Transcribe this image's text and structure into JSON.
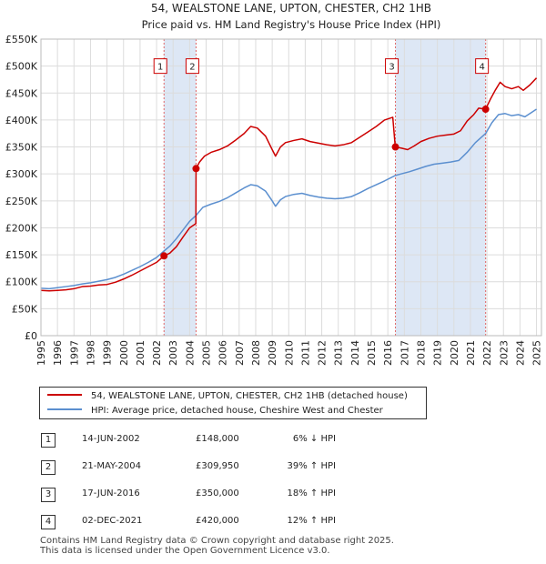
{
  "chart_data": {
    "type": "line",
    "title": "54, WEALSTONE LANE, UPTON, CHESTER, CH2 1HB",
    "subtitle": "Price paid vs. HM Land Registry's House Price Index (HPI)",
    "xlim": [
      1995,
      2025.3
    ],
    "ylim": [
      0,
      550000
    ],
    "yticks": [
      0,
      50000,
      100000,
      150000,
      200000,
      250000,
      300000,
      350000,
      400000,
      450000,
      500000,
      550000
    ],
    "ytick_labels": [
      "£0",
      "£50K",
      "£100K",
      "£150K",
      "£200K",
      "£250K",
      "£300K",
      "£350K",
      "£400K",
      "£450K",
      "£500K",
      "£550K"
    ],
    "xtick_labels": [
      "1995",
      "1996",
      "1997",
      "1998",
      "1999",
      "2000",
      "2001",
      "2002",
      "2003",
      "2004",
      "2005",
      "2006",
      "2007",
      "2008",
      "2009",
      "2010",
      "2011",
      "2012",
      "2013",
      "2014",
      "2015",
      "2016",
      "2017",
      "2018",
      "2019",
      "2020",
      "2021",
      "2022",
      "2023",
      "2024",
      "2025"
    ],
    "grid": true,
    "series": [
      {
        "name": "54, WEALSTONE LANE, UPTON, CHESTER, CH2 1HB (detached house)",
        "color": "#cc0000",
        "points": [
          [
            1995.0,
            84000
          ],
          [
            1995.5,
            83000
          ],
          [
            1996.0,
            84000
          ],
          [
            1996.5,
            85000
          ],
          [
            1997.0,
            87000
          ],
          [
            1997.5,
            91000
          ],
          [
            1998.0,
            92000
          ],
          [
            1998.5,
            94000
          ],
          [
            1999.0,
            95000
          ],
          [
            1999.5,
            99000
          ],
          [
            2000.0,
            105000
          ],
          [
            2000.5,
            112000
          ],
          [
            2001.0,
            120000
          ],
          [
            2001.5,
            128000
          ],
          [
            2002.0,
            136000
          ],
          [
            2002.45,
            148000
          ],
          [
            2002.8,
            153000
          ],
          [
            2003.2,
            165000
          ],
          [
            2003.6,
            183000
          ],
          [
            2004.0,
            200000
          ],
          [
            2004.38,
            208000
          ],
          [
            2004.39,
            309950
          ],
          [
            2004.6,
            322000
          ],
          [
            2004.9,
            333000
          ],
          [
            2005.3,
            340000
          ],
          [
            2005.8,
            345000
          ],
          [
            2006.3,
            352000
          ],
          [
            2006.8,
            363000
          ],
          [
            2007.3,
            375000
          ],
          [
            2007.7,
            388000
          ],
          [
            2008.1,
            385000
          ],
          [
            2008.6,
            370000
          ],
          [
            2009.0,
            345000
          ],
          [
            2009.2,
            333000
          ],
          [
            2009.5,
            350000
          ],
          [
            2009.8,
            358000
          ],
          [
            2010.3,
            362000
          ],
          [
            2010.8,
            365000
          ],
          [
            2011.3,
            360000
          ],
          [
            2011.8,
            357000
          ],
          [
            2012.3,
            354000
          ],
          [
            2012.8,
            352000
          ],
          [
            2013.3,
            354000
          ],
          [
            2013.8,
            358000
          ],
          [
            2014.3,
            368000
          ],
          [
            2014.8,
            378000
          ],
          [
            2015.3,
            388000
          ],
          [
            2015.8,
            400000
          ],
          [
            2016.3,
            405000
          ],
          [
            2016.45,
            350000
          ],
          [
            2016.8,
            348000
          ],
          [
            2017.2,
            345000
          ],
          [
            2017.6,
            352000
          ],
          [
            2018.0,
            360000
          ],
          [
            2018.5,
            366000
          ],
          [
            2019.0,
            370000
          ],
          [
            2019.5,
            372000
          ],
          [
            2020.0,
            374000
          ],
          [
            2020.4,
            380000
          ],
          [
            2020.8,
            398000
          ],
          [
            2021.2,
            410000
          ],
          [
            2021.5,
            422000
          ],
          [
            2021.92,
            420000
          ],
          [
            2022.2,
            438000
          ],
          [
            2022.5,
            455000
          ],
          [
            2022.8,
            470000
          ],
          [
            2023.1,
            462000
          ],
          [
            2023.5,
            458000
          ],
          [
            2023.9,
            462000
          ],
          [
            2024.2,
            455000
          ],
          [
            2024.6,
            465000
          ],
          [
            2025.0,
            478000
          ]
        ]
      },
      {
        "name": "HPI: Average price, detached house, Cheshire West and Chester",
        "color": "#5b8fcf",
        "points": [
          [
            1995.0,
            88000
          ],
          [
            1995.5,
            87000
          ],
          [
            1996.0,
            89000
          ],
          [
            1996.5,
            91000
          ],
          [
            1997.0,
            93000
          ],
          [
            1997.5,
            96000
          ],
          [
            1998.0,
            98000
          ],
          [
            1998.5,
            101000
          ],
          [
            1999.0,
            104000
          ],
          [
            1999.5,
            108000
          ],
          [
            2000.0,
            114000
          ],
          [
            2000.5,
            121000
          ],
          [
            2001.0,
            128000
          ],
          [
            2001.5,
            136000
          ],
          [
            2002.0,
            145000
          ],
          [
            2002.45,
            157000
          ],
          [
            2002.8,
            166000
          ],
          [
            2003.2,
            180000
          ],
          [
            2003.6,
            196000
          ],
          [
            2004.0,
            212000
          ],
          [
            2004.39,
            223000
          ],
          [
            2004.8,
            238000
          ],
          [
            2005.3,
            244000
          ],
          [
            2005.8,
            249000
          ],
          [
            2006.3,
            256000
          ],
          [
            2006.8,
            265000
          ],
          [
            2007.3,
            274000
          ],
          [
            2007.7,
            280000
          ],
          [
            2008.1,
            278000
          ],
          [
            2008.6,
            268000
          ],
          [
            2009.0,
            250000
          ],
          [
            2009.2,
            240000
          ],
          [
            2009.5,
            252000
          ],
          [
            2009.8,
            258000
          ],
          [
            2010.3,
            262000
          ],
          [
            2010.8,
            264000
          ],
          [
            2011.3,
            260000
          ],
          [
            2011.8,
            257000
          ],
          [
            2012.3,
            255000
          ],
          [
            2012.8,
            254000
          ],
          [
            2013.3,
            255000
          ],
          [
            2013.8,
            258000
          ],
          [
            2014.3,
            265000
          ],
          [
            2014.8,
            273000
          ],
          [
            2015.3,
            280000
          ],
          [
            2015.8,
            287000
          ],
          [
            2016.45,
            297000
          ],
          [
            2016.8,
            300000
          ],
          [
            2017.3,
            304000
          ],
          [
            2017.8,
            309000
          ],
          [
            2018.3,
            314000
          ],
          [
            2018.8,
            318000
          ],
          [
            2019.3,
            320000
          ],
          [
            2019.8,
            322000
          ],
          [
            2020.3,
            325000
          ],
          [
            2020.8,
            340000
          ],
          [
            2021.3,
            358000
          ],
          [
            2021.92,
            375000
          ],
          [
            2022.3,
            395000
          ],
          [
            2022.7,
            410000
          ],
          [
            2023.1,
            412000
          ],
          [
            2023.5,
            408000
          ],
          [
            2023.9,
            410000
          ],
          [
            2024.3,
            406000
          ],
          [
            2024.7,
            414000
          ],
          [
            2025.0,
            420000
          ]
        ]
      }
    ],
    "transactions": [
      {
        "label": "1",
        "x": 2002.45,
        "y": 148000
      },
      {
        "label": "2",
        "x": 2004.39,
        "y": 309950
      },
      {
        "label": "3",
        "x": 2016.46,
        "y": 350000
      },
      {
        "label": "4",
        "x": 2021.92,
        "y": 420000
      }
    ],
    "shaded_ranges": [
      [
        2002.45,
        2004.39
      ],
      [
        2016.46,
        2021.92
      ]
    ],
    "marker_label_y": 500000
  },
  "legend": {
    "property": "54, WEALSTONE LANE, UPTON, CHESTER, CH2 1HB (detached house)",
    "hpi": "HPI: Average price, detached house, Cheshire West and Chester"
  },
  "table": [
    {
      "num": "1",
      "date": "14-JUN-2002",
      "price": "£148,000",
      "hpi": "6% ↓ HPI"
    },
    {
      "num": "2",
      "date": "21-MAY-2004",
      "price": "£309,950",
      "hpi": "39% ↑ HPI"
    },
    {
      "num": "3",
      "date": "17-JUN-2016",
      "price": "£350,000",
      "hpi": "18% ↑ HPI"
    },
    {
      "num": "4",
      "date": "02-DEC-2021",
      "price": "£420,000",
      "hpi": "12% ↑ HPI"
    }
  ],
  "footer": {
    "line1": "Contains HM Land Registry data © Crown copyright and database right 2025.",
    "line2": "This data is licensed under the Open Government Licence v3.0."
  }
}
